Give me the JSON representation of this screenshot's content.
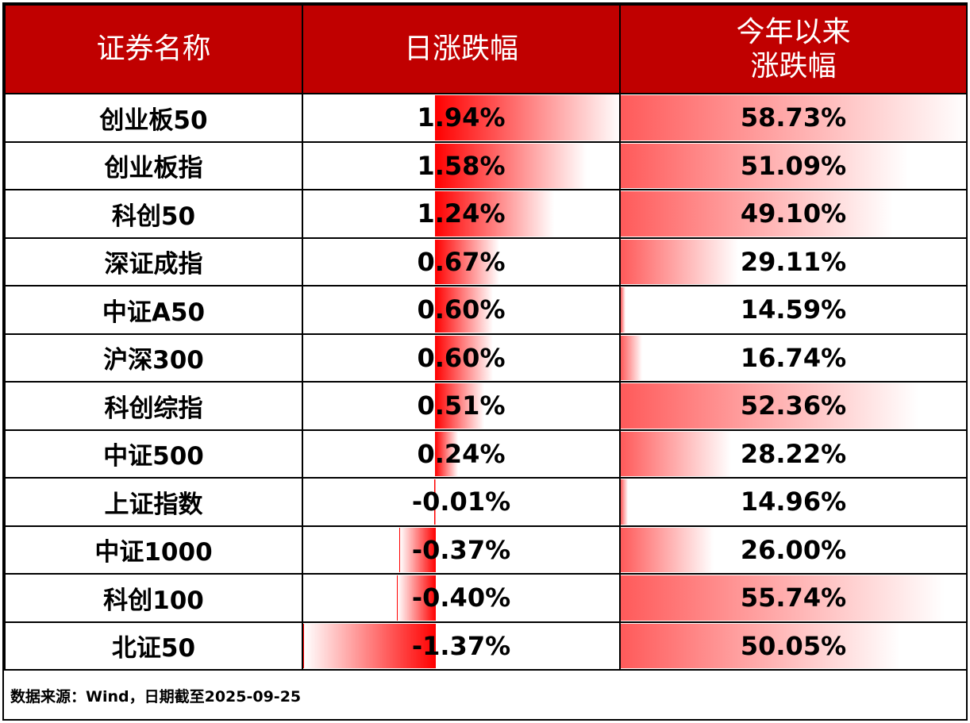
{
  "chart_data": {
    "type": "table",
    "columns": [
      "证券名称",
      "日涨跌幅",
      "今年以来\n涨跌幅"
    ],
    "rows": [
      {
        "name": "创业板50",
        "daily": 1.94,
        "ytd": 58.73,
        "daily_text": "1.94%",
        "ytd_text": "58.73%"
      },
      {
        "name": "创业板指",
        "daily": 1.58,
        "ytd": 51.09,
        "daily_text": "1.58%",
        "ytd_text": "51.09%"
      },
      {
        "name": "科创50",
        "daily": 1.24,
        "ytd": 49.1,
        "daily_text": "1.24%",
        "ytd_text": "49.10%"
      },
      {
        "name": "深证成指",
        "daily": 0.67,
        "ytd": 29.11,
        "daily_text": "0.67%",
        "ytd_text": "29.11%"
      },
      {
        "name": "中证A50",
        "daily": 0.6,
        "ytd": 14.59,
        "daily_text": "0.60%",
        "ytd_text": "14.59%"
      },
      {
        "name": "沪深300",
        "daily": 0.6,
        "ytd": 16.74,
        "daily_text": "0.60%",
        "ytd_text": "16.74%"
      },
      {
        "name": "科创综指",
        "daily": 0.51,
        "ytd": 52.36,
        "daily_text": "0.51%",
        "ytd_text": "52.36%"
      },
      {
        "name": "中证500",
        "daily": 0.24,
        "ytd": 28.22,
        "daily_text": "0.24%",
        "ytd_text": "28.22%"
      },
      {
        "name": "上证指数",
        "daily": -0.01,
        "ytd": 14.96,
        "daily_text": "-0.01%",
        "ytd_text": "14.96%"
      },
      {
        "name": "中证1000",
        "daily": -0.37,
        "ytd": 26.0,
        "daily_text": "-0.37%",
        "ytd_text": "26.00%"
      },
      {
        "name": "科创100",
        "daily": -0.4,
        "ytd": 55.74,
        "daily_text": "-0.40%",
        "ytd_text": "55.74%"
      },
      {
        "name": "北证50",
        "daily": -1.37,
        "ytd": 50.05,
        "daily_text": "-1.37%",
        "ytd_text": "50.05%"
      }
    ],
    "daily_axis": {
      "min": -1.37,
      "max": 1.94
    },
    "ytd_axis": {
      "min": 14.0,
      "max": 58.73
    }
  },
  "colors": {
    "header_bg": "#c00000",
    "header_text": "#ffffff",
    "bar": "#ff0000",
    "bar_soft": "#ff5a5a"
  },
  "source_text": "数据来源：Wind，日期截至2025-09-25"
}
